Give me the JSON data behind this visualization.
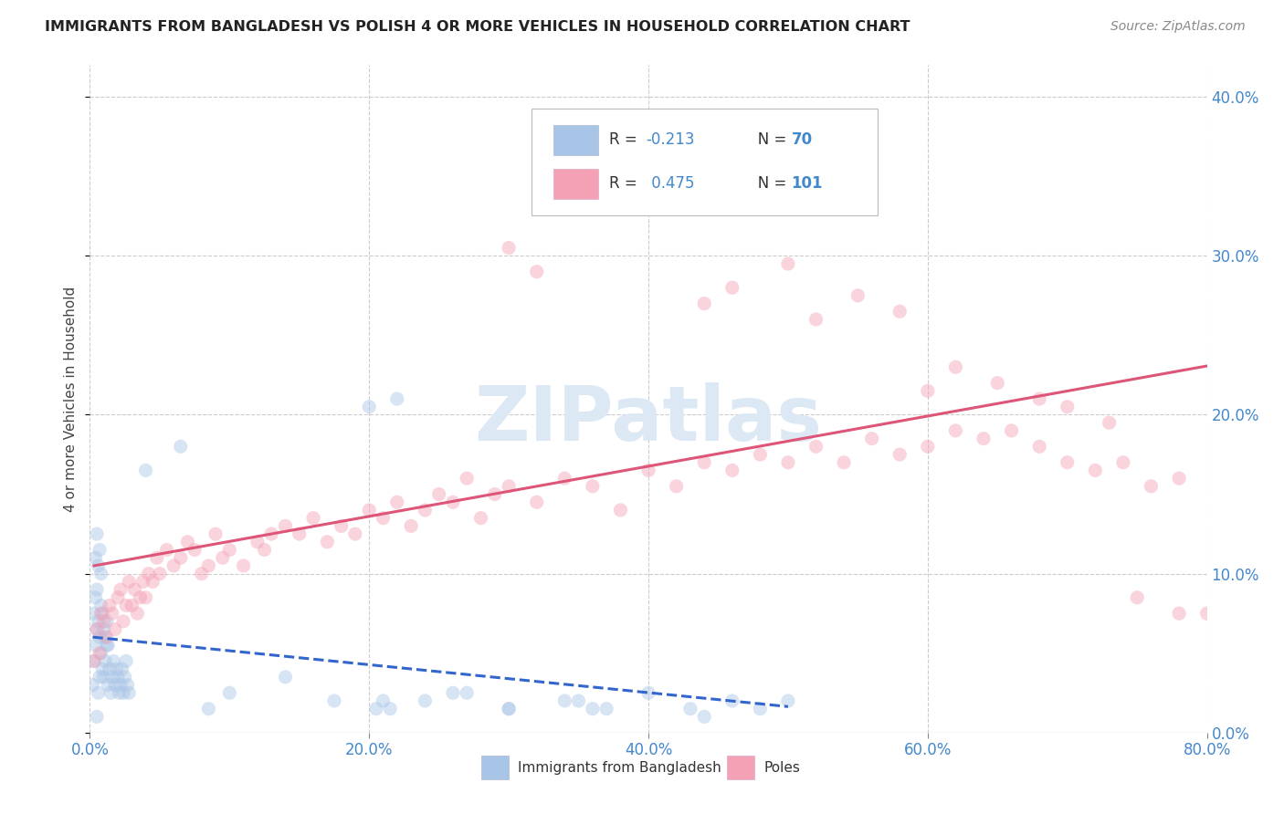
{
  "title": "IMMIGRANTS FROM BANGLADESH VS POLISH 4 OR MORE VEHICLES IN HOUSEHOLD CORRELATION CHART",
  "source": "Source: ZipAtlas.com",
  "ylabel": "4 or more Vehicles in Household",
  "legend_label1": "Immigrants from Bangladesh",
  "legend_label2": "Poles",
  "R1": -0.213,
  "N1": 70,
  "R2": 0.475,
  "N2": 101,
  "xlim": [
    0.0,
    80.0
  ],
  "ylim": [
    0.0,
    42.0
  ],
  "yticks": [
    0,
    10,
    20,
    30,
    40
  ],
  "xticks": [
    0,
    20,
    40,
    60,
    80
  ],
  "color_bangladesh": "#a8c4e6",
  "color_poles": "#f4a0b5",
  "trendline_color_bangladesh": "#3366cc",
  "trendline_color_poles": "#dd5577",
  "background_color": "#ffffff",
  "watermark": "ZIPatlas",
  "scatter_size": 120,
  "scatter_alpha": 0.45,
  "bangladesh_x": [
    0.2,
    0.3,
    0.4,
    0.5,
    0.5,
    0.6,
    0.7,
    0.8,
    0.9,
    1.0,
    1.1,
    1.2,
    1.3,
    1.4,
    1.5,
    1.6,
    1.7,
    1.8,
    1.9,
    2.0,
    2.1,
    2.2,
    2.3,
    2.4,
    2.5,
    2.6,
    2.7,
    2.8,
    0.3,
    0.4,
    0.5,
    0.6,
    0.7,
    0.8,
    0.9,
    1.0,
    1.1,
    1.2,
    1.3,
    0.4,
    0.5,
    0.6,
    0.7,
    0.8,
    4.0,
    6.5,
    8.5,
    10.0,
    17.5,
    20.5,
    21.0,
    21.5,
    24.0,
    27.0,
    30.0,
    34.0,
    36.0,
    44.0,
    48.0,
    50.0,
    14.0,
    20.0,
    22.0,
    26.0,
    30.0,
    35.0,
    37.0,
    40.0,
    43.0,
    46.0
  ],
  "bangladesh_y": [
    3.0,
    4.5,
    5.5,
    6.5,
    1.0,
    2.5,
    3.5,
    5.0,
    4.0,
    3.5,
    4.5,
    5.5,
    3.0,
    4.0,
    2.5,
    3.5,
    4.5,
    3.0,
    4.0,
    3.5,
    2.5,
    3.0,
    4.0,
    2.5,
    3.5,
    4.5,
    3.0,
    2.5,
    7.5,
    8.5,
    9.0,
    7.0,
    6.0,
    8.0,
    7.5,
    6.5,
    6.0,
    7.0,
    5.5,
    11.0,
    12.5,
    10.5,
    11.5,
    10.0,
    16.5,
    18.0,
    1.5,
    2.5,
    2.0,
    1.5,
    2.0,
    1.5,
    2.0,
    2.5,
    1.5,
    2.0,
    1.5,
    1.0,
    1.5,
    2.0,
    3.5,
    20.5,
    21.0,
    2.5,
    1.5,
    2.0,
    1.5,
    2.5,
    1.5,
    2.0
  ],
  "poles_x": [
    0.3,
    0.5,
    0.7,
    0.8,
    1.0,
    1.2,
    1.4,
    1.6,
    1.8,
    2.0,
    2.2,
    2.4,
    2.6,
    2.8,
    3.0,
    3.2,
    3.4,
    3.6,
    3.8,
    4.0,
    4.2,
    4.5,
    4.8,
    5.0,
    5.5,
    6.0,
    6.5,
    7.0,
    7.5,
    8.0,
    8.5,
    9.0,
    9.5,
    10.0,
    11.0,
    12.0,
    12.5,
    13.0,
    14.0,
    15.0,
    16.0,
    17.0,
    18.0,
    19.0,
    20.0,
    21.0,
    22.0,
    23.0,
    24.0,
    25.0,
    26.0,
    27.0,
    28.0,
    29.0,
    30.0,
    32.0,
    34.0,
    36.0,
    38.0,
    40.0,
    42.0,
    44.0,
    46.0,
    48.0,
    50.0,
    52.0,
    54.0,
    56.0,
    58.0,
    60.0,
    62.0,
    64.0,
    66.0,
    68.0,
    70.0,
    72.0,
    74.0,
    76.0,
    78.0,
    80.0,
    30.0,
    32.0,
    35.0,
    37.0,
    38.0,
    40.0,
    42.0,
    44.0,
    46.0,
    50.0,
    52.0,
    55.0,
    58.0,
    60.0,
    62.0,
    65.0,
    68.0,
    70.0,
    73.0,
    75.0,
    78.0
  ],
  "poles_y": [
    4.5,
    6.5,
    5.0,
    7.5,
    7.0,
    6.0,
    8.0,
    7.5,
    6.5,
    8.5,
    9.0,
    7.0,
    8.0,
    9.5,
    8.0,
    9.0,
    7.5,
    8.5,
    9.5,
    8.5,
    10.0,
    9.5,
    11.0,
    10.0,
    11.5,
    10.5,
    11.0,
    12.0,
    11.5,
    10.0,
    10.5,
    12.5,
    11.0,
    11.5,
    10.5,
    12.0,
    11.5,
    12.5,
    13.0,
    12.5,
    13.5,
    12.0,
    13.0,
    12.5,
    14.0,
    13.5,
    14.5,
    13.0,
    14.0,
    15.0,
    14.5,
    16.0,
    13.5,
    15.0,
    15.5,
    14.5,
    16.0,
    15.5,
    14.0,
    16.5,
    15.5,
    17.0,
    16.5,
    17.5,
    17.0,
    18.0,
    17.0,
    18.5,
    17.5,
    18.0,
    19.0,
    18.5,
    19.0,
    18.0,
    17.0,
    16.5,
    17.0,
    15.5,
    16.0,
    7.5,
    30.5,
    29.0,
    35.5,
    33.0,
    35.0,
    34.0,
    36.5,
    27.0,
    28.0,
    29.5,
    26.0,
    27.5,
    26.5,
    21.5,
    23.0,
    22.0,
    21.0,
    20.5,
    19.5,
    8.5,
    7.5
  ]
}
